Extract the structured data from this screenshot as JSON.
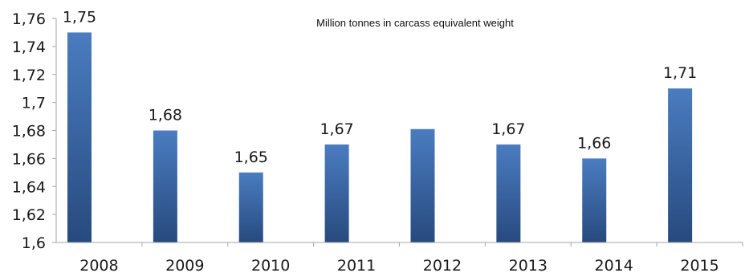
{
  "chart_data": {
    "type": "bar",
    "subtitle": "Million tonnes in carcass equivalent weight",
    "categories": [
      "2008",
      "2009",
      "2010",
      "2011",
      "2012",
      "2013",
      "2014",
      "2015"
    ],
    "values": [
      1.75,
      1.68,
      1.65,
      1.67,
      1.681,
      1.67,
      1.66,
      1.71
    ],
    "data_labels": [
      "1,75",
      "1,68",
      "1,65",
      "1,67",
      "",
      "1,67",
      "1,66",
      "1,71"
    ],
    "yticks": [
      1.6,
      1.62,
      1.64,
      1.66,
      1.68,
      1.7,
      1.72,
      1.74,
      1.76
    ],
    "ytick_labels": [
      "1,6",
      "1,62",
      "1,64",
      "1,66",
      "1,68",
      "1,7",
      "1,72",
      "1,74",
      "1,76"
    ],
    "ylim": [
      1.6,
      1.76
    ],
    "grid": false,
    "colors": {
      "bar_light": "#4a7cc0",
      "bar_dark": "#274a7e",
      "axis": "#a6a6a6"
    }
  }
}
